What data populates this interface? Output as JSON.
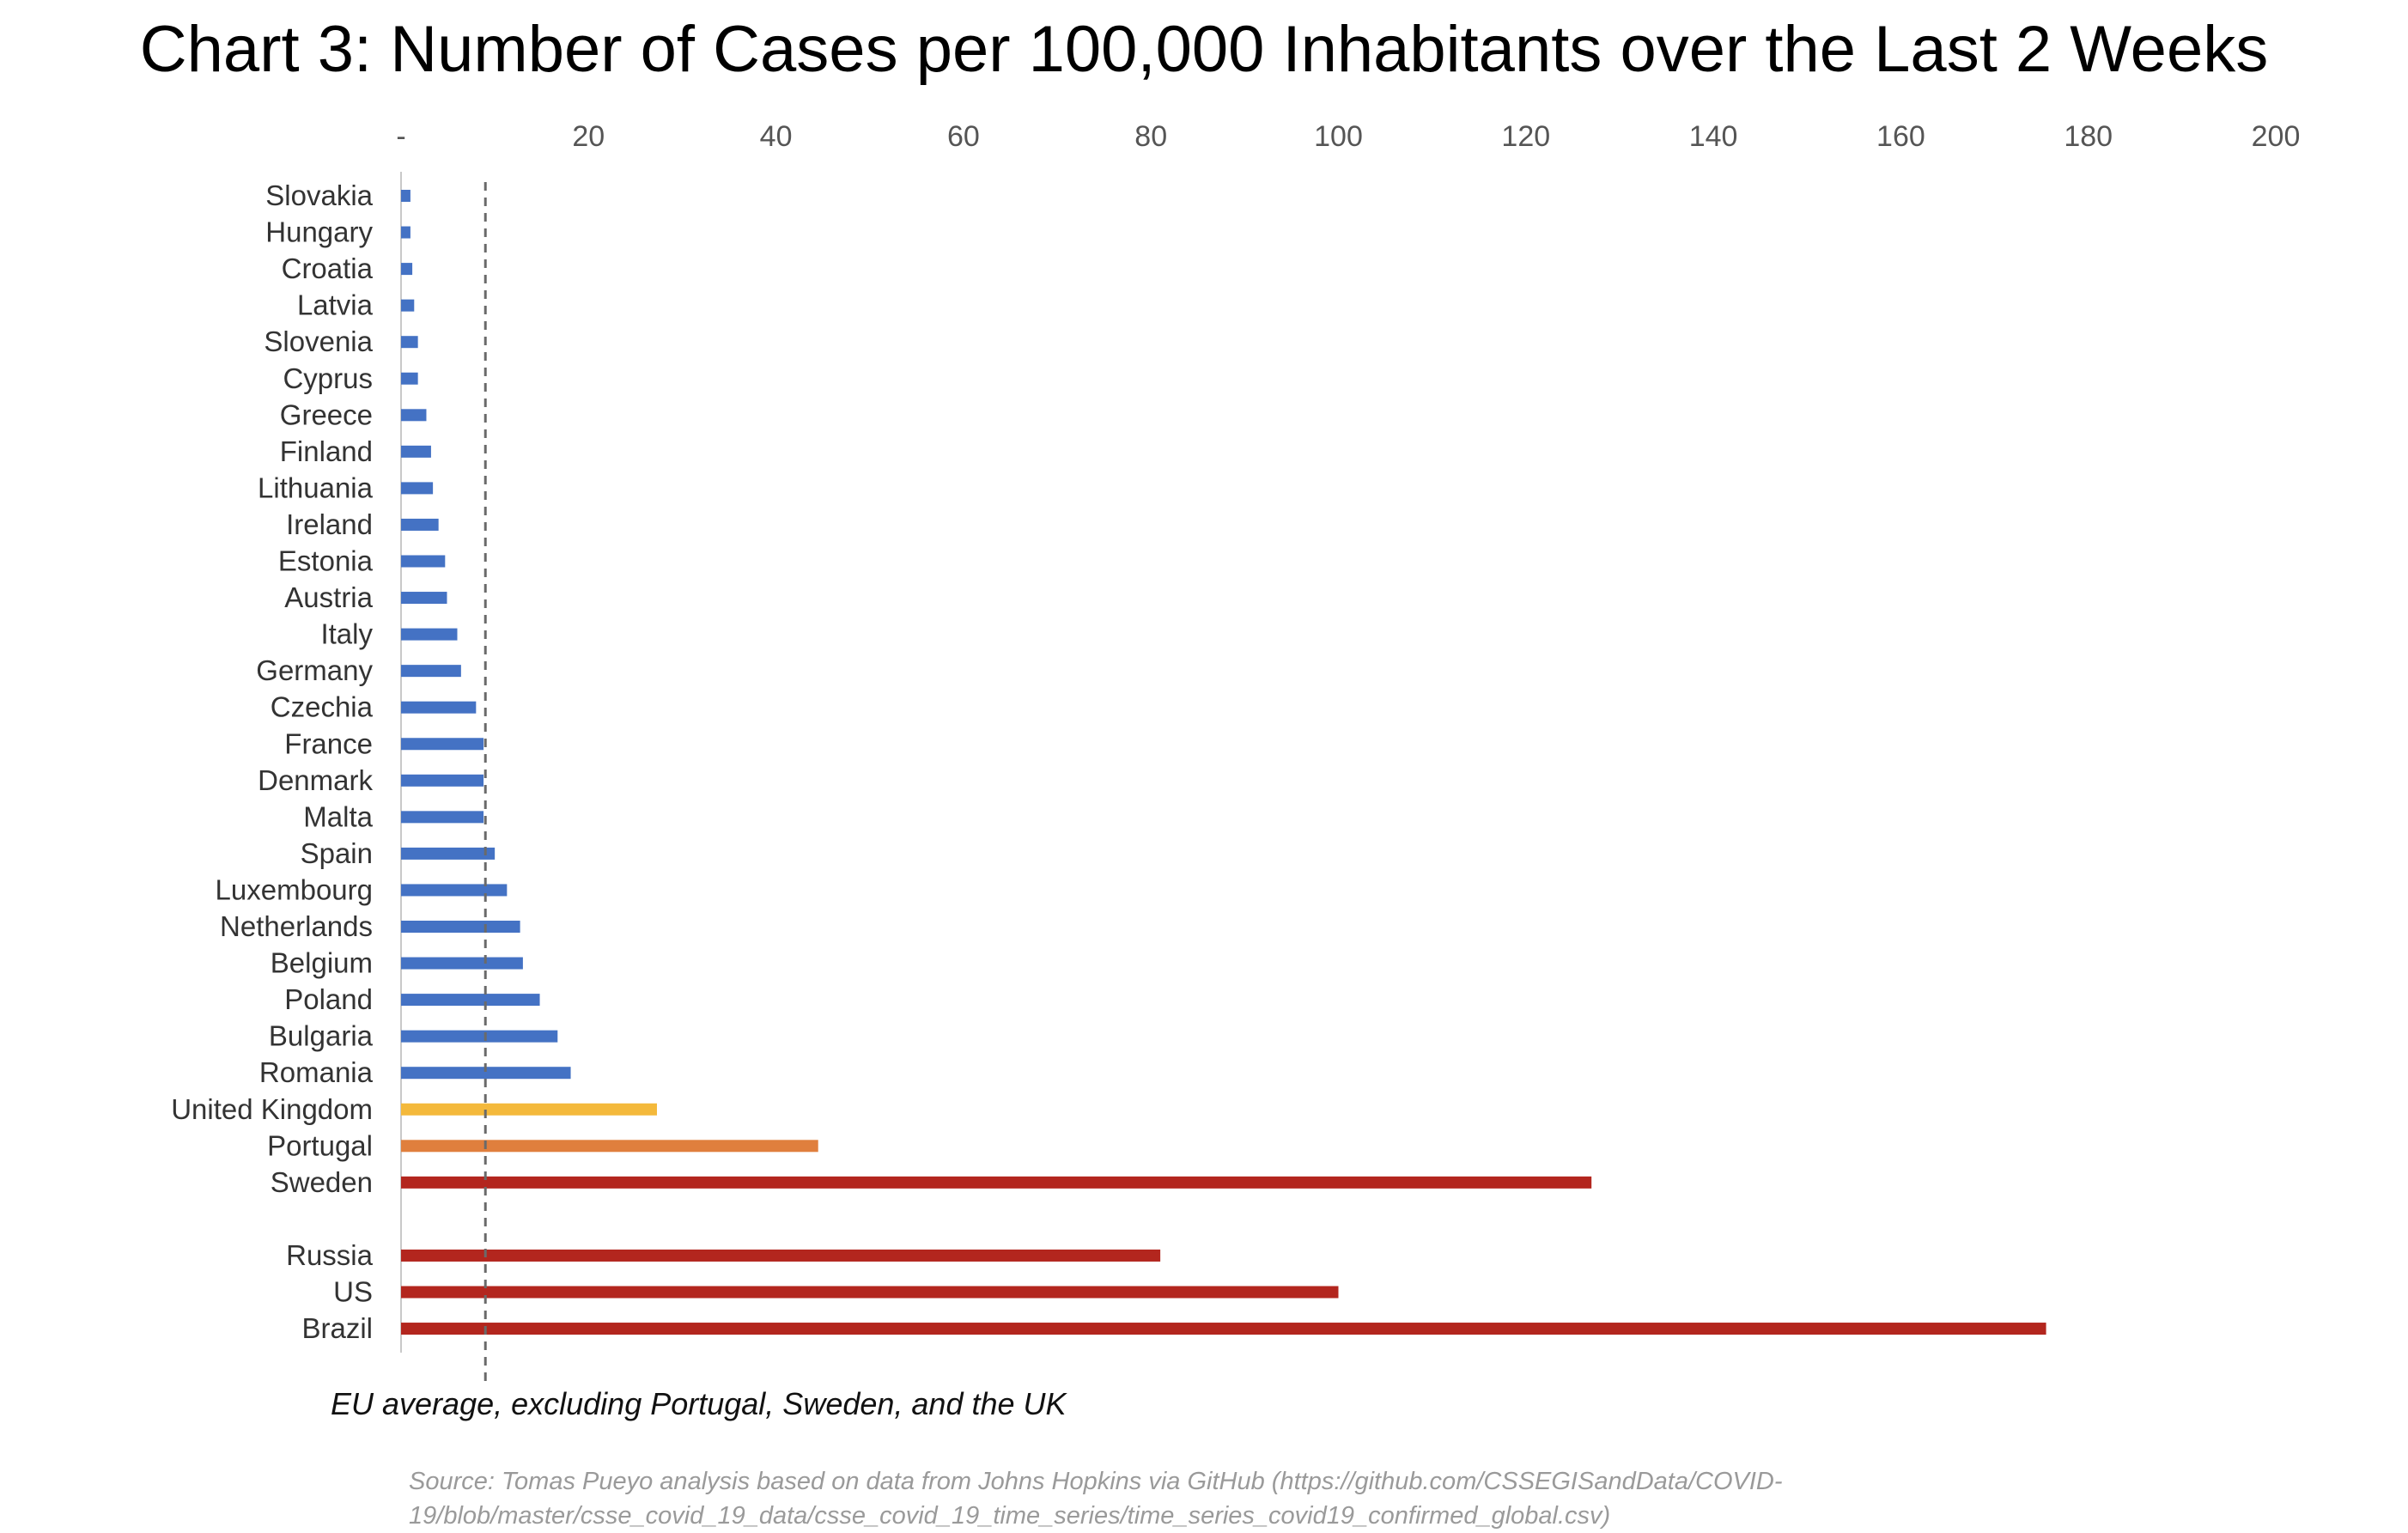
{
  "chart_data": {
    "type": "bar",
    "orientation": "horizontal",
    "title": "Chart 3: Number of Cases per 100,000 Inhabitants over the Last 2 Weeks",
    "x_ticks": [
      "-",
      "20",
      "40",
      "60",
      "80",
      "100",
      "120",
      "140",
      "160",
      "180",
      "200"
    ],
    "xlim": [
      0,
      200
    ],
    "reference_line": {
      "value": 9,
      "label": "EU average, excluding Portugal, Sweden, and the UK",
      "style": "dashed"
    },
    "categories": [
      {
        "label": "Slovakia",
        "value": 1.0,
        "color": "#4472c4"
      },
      {
        "label": "Hungary",
        "value": 1.0,
        "color": "#4472c4"
      },
      {
        "label": "Croatia",
        "value": 1.2,
        "color": "#4472c4"
      },
      {
        "label": "Latvia",
        "value": 1.4,
        "color": "#4472c4"
      },
      {
        "label": "Slovenia",
        "value": 1.8,
        "color": "#4472c4"
      },
      {
        "label": "Cyprus",
        "value": 1.8,
        "color": "#4472c4"
      },
      {
        "label": "Greece",
        "value": 2.7,
        "color": "#4472c4"
      },
      {
        "label": "Finland",
        "value": 3.2,
        "color": "#4472c4"
      },
      {
        "label": "Lithuania",
        "value": 3.4,
        "color": "#4472c4"
      },
      {
        "label": "Ireland",
        "value": 4.0,
        "color": "#4472c4"
      },
      {
        "label": "Estonia",
        "value": 4.7,
        "color": "#4472c4"
      },
      {
        "label": "Austria",
        "value": 4.9,
        "color": "#4472c4"
      },
      {
        "label": "Italy",
        "value": 6.0,
        "color": "#4472c4"
      },
      {
        "label": "Germany",
        "value": 6.4,
        "color": "#4472c4"
      },
      {
        "label": "Czechia",
        "value": 8.0,
        "color": "#4472c4"
      },
      {
        "label": "France",
        "value": 8.8,
        "color": "#4472c4"
      },
      {
        "label": "Denmark",
        "value": 8.8,
        "color": "#4472c4"
      },
      {
        "label": "Malta",
        "value": 8.8,
        "color": "#4472c4"
      },
      {
        "label": "Spain",
        "value": 10.0,
        "color": "#4472c4"
      },
      {
        "label": "Luxembourg",
        "value": 11.3,
        "color": "#4472c4"
      },
      {
        "label": "Netherlands",
        "value": 12.7,
        "color": "#4472c4"
      },
      {
        "label": "Belgium",
        "value": 13.0,
        "color": "#4472c4"
      },
      {
        "label": "Poland",
        "value": 14.8,
        "color": "#4472c4"
      },
      {
        "label": "Bulgaria",
        "value": 16.7,
        "color": "#4472c4"
      },
      {
        "label": "Romania",
        "value": 18.1,
        "color": "#4472c4"
      },
      {
        "label": "United Kingdom",
        "value": 27.3,
        "color": "#f4b93b"
      },
      {
        "label": "Portugal",
        "value": 44.5,
        "color": "#e07f3d"
      },
      {
        "label": "Sweden",
        "value": 127.0,
        "color": "#b3261e"
      },
      {
        "label": "",
        "value": null,
        "color": ""
      },
      {
        "label": "Russia",
        "value": 81.0,
        "color": "#b3261e"
      },
      {
        "label": "US",
        "value": 100.0,
        "color": "#b3261e"
      },
      {
        "label": "Brazil",
        "value": 175.5,
        "color": "#b3261e"
      }
    ]
  },
  "annotation": "EU average, excluding Portugal, Sweden, and the UK",
  "source": "Source: Tomas Pueyo analysis based on data from Johns Hopkins via GitHub (https://github.com/CSSEGISandData/COVID-19/blob/master/csse_covid_19_data/csse_covid_19_time_series/time_series_covid19_confirmed_global.csv)"
}
